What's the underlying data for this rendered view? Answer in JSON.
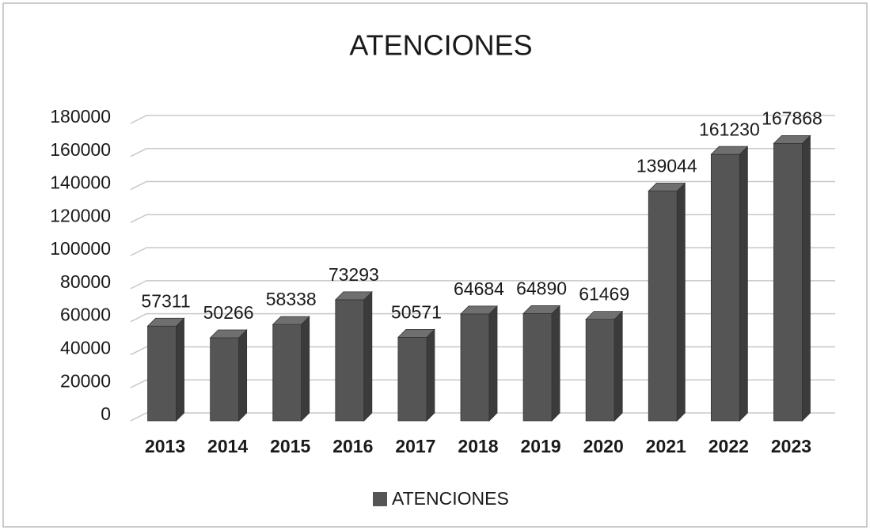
{
  "chart_data": {
    "type": "bar3d",
    "title": "ATENCIONES",
    "categories": [
      "2013",
      "2014",
      "2015",
      "2016",
      "2017",
      "2018",
      "2019",
      "2020",
      "2021",
      "2022",
      "2023"
    ],
    "series": [
      {
        "name": "ATENCIONES",
        "color": "#555555",
        "values": [
          57311,
          50266,
          58338,
          73293,
          50571,
          64684,
          64890,
          61469,
          139044,
          161230,
          167868
        ]
      }
    ],
    "ylim": [
      0,
      180000
    ],
    "yticks": [
      0,
      20000,
      40000,
      60000,
      80000,
      100000,
      120000,
      140000,
      160000,
      180000
    ],
    "grid": true,
    "legend": "bottom"
  }
}
